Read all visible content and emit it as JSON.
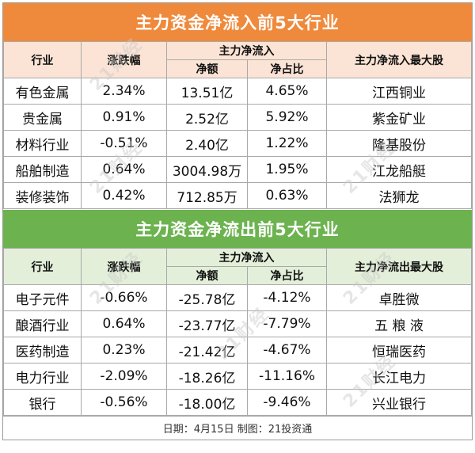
{
  "inflow": {
    "title": "主力资金净流入前5大行业",
    "headers": {
      "industry": "行业",
      "change": "涨跌幅",
      "main_net": "主力净流入",
      "net_amount": "净额",
      "net_ratio": "净占比",
      "top_stock": "主力净流入最大股"
    },
    "rows": [
      {
        "industry": "有色金属",
        "change": "2.34%",
        "amount": "13.51亿",
        "ratio": "4.65%",
        "stock": "江西铜业"
      },
      {
        "industry": "贵金属",
        "change": "0.91%",
        "amount": "2.52亿",
        "ratio": "5.92%",
        "stock": "紫金矿业"
      },
      {
        "industry": "材料行业",
        "change": "-0.51%",
        "amount": "2.40亿",
        "ratio": "1.22%",
        "stock": "隆基股份"
      },
      {
        "industry": "船舶制造",
        "change": "0.64%",
        "amount": "3004.98万",
        "ratio": "1.95%",
        "stock": "江龙船艇"
      },
      {
        "industry": "装修装饰",
        "change": "0.42%",
        "amount": "712.85万",
        "ratio": "0.63%",
        "stock": "法狮龙"
      }
    ]
  },
  "outflow": {
    "title": "主力资金净流出前5大行业",
    "headers": {
      "industry": "行业",
      "change": "涨跌幅",
      "main_net": "主力净流入",
      "net_amount": "净额",
      "net_ratio": "净占比",
      "top_stock": "主力净流出最大股"
    },
    "rows": [
      {
        "industry": "电子元件",
        "change": "-0.66%",
        "amount": "-25.78亿",
        "ratio": "-4.12%",
        "stock": "卓胜微"
      },
      {
        "industry": "酿酒行业",
        "change": "0.64%",
        "amount": "-23.77亿",
        "ratio": "-7.79%",
        "stock": "五 粮 液"
      },
      {
        "industry": "医药制造",
        "change": "0.23%",
        "amount": "-21.42亿",
        "ratio": "-4.67%",
        "stock": "恒瑞医药"
      },
      {
        "industry": "电力行业",
        "change": "-2.09%",
        "amount": "-18.26亿",
        "ratio": "-11.16%",
        "stock": "长江电力"
      },
      {
        "industry": "银行",
        "change": "-0.56%",
        "amount": "-18.00亿",
        "ratio": "-9.46%",
        "stock": "兴业银行"
      }
    ]
  },
  "footer": "日期：4月15日  制图：21投资通",
  "watermark": "21财经"
}
